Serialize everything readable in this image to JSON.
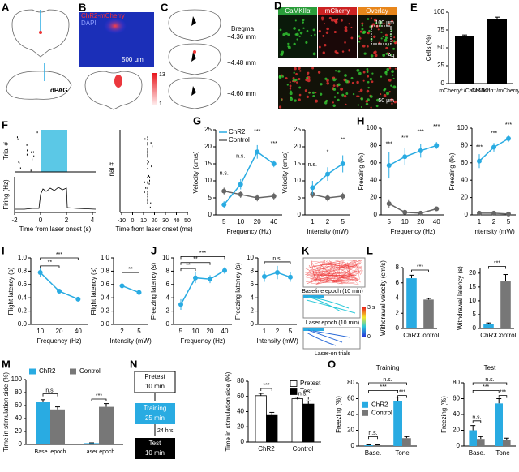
{
  "panels": {
    "letters": [
      "A",
      "B",
      "C",
      "D",
      "E",
      "F",
      "G",
      "H",
      "I",
      "J",
      "K",
      "L",
      "M",
      "N",
      "O"
    ],
    "a": {
      "region": "dPAG"
    },
    "b": {
      "channels": [
        "ChR2-mCherry",
        "DAPI"
      ],
      "scale": "500 μm",
      "colorbar": [
        "13",
        "1"
      ]
    },
    "c": {
      "reference": "Bregma",
      "levels": [
        "−4.36 mm",
        "−4.48 mm",
        "−4.60 mm"
      ]
    },
    "d": {
      "channels": [
        "CaMKIIα",
        "mCherry",
        "Overlay"
      ],
      "scale_top": "100 μm",
      "region": "Aq",
      "scale_bottom": "50 μm"
    },
    "f": {
      "raster_ylabel": "Trial #",
      "firing_ylabel": "Firing (Hz)",
      "xlabel_s": "Time from laser onset (s)",
      "xticks_s": [
        "-2",
        "0",
        "2",
        "4"
      ],
      "xlabel_ms": "Time from laser onset (ms)",
      "xticks_ms": [
        "-10",
        "0",
        "10",
        "20",
        "30",
        "40",
        "50"
      ]
    },
    "k": {
      "epochs": [
        "Baseline epoch (10 min)",
        "Laser epoch (10 min)",
        "Laser-on trials"
      ],
      "colorbar": [
        "3 s",
        "0"
      ]
    },
    "n": {
      "steps": [
        {
          "name": "Pretest",
          "duration": "10 min"
        },
        {
          "name": "Training",
          "duration": "25 min"
        },
        {
          "name": "Test",
          "duration": "10 min"
        }
      ],
      "interval": "24 hrs"
    }
  },
  "chart_data": [
    {
      "type": "bar",
      "ylabel": "Cells (%)",
      "categories": [
        "mCherry⁺/CaMKIIα⁺",
        "CaMKIIα⁺/mCherry⁺"
      ],
      "values": [
        66,
        90
      ],
      "errors": [
        2,
        3
      ],
      "color": "#000000",
      "ylim": [
        0,
        100
      ],
      "yticks": [
        0,
        25,
        50,
        75,
        100
      ]
    },
    {
      "type": "line",
      "xlabel": "Frequency (Hz)",
      "ylabel": "Velocity (cm/s)",
      "categories": [
        "5",
        "10",
        "20",
        "40"
      ],
      "series": [
        {
          "name": "ChR2",
          "color": "#29abe2",
          "values": [
            3,
            9,
            18.5,
            15
          ],
          "errors": [
            1,
            1.5,
            2,
            1
          ]
        },
        {
          "name": "Control",
          "color": "#666666",
          "values": [
            7,
            6,
            5,
            5.5
          ],
          "errors": [
            1,
            1,
            1,
            1
          ]
        }
      ],
      "ylim": [
        0,
        25
      ],
      "yticks": [
        0,
        5,
        10,
        15,
        20,
        25
      ],
      "legend": "upper left",
      "annotations": [
        "n.s.",
        "n.s.",
        "***",
        "***"
      ]
    },
    {
      "type": "line",
      "xlabel": "Intensity (mW)",
      "ylabel": "Velocity (cm/s)",
      "categories": [
        "1",
        "2",
        "5"
      ],
      "series": [
        {
          "color": "#29abe2",
          "values": [
            8,
            12,
            15
          ],
          "errors": [
            2,
            2,
            2.5
          ]
        },
        {
          "color": "#666666",
          "values": [
            6,
            5,
            5.5
          ],
          "errors": [
            1,
            1,
            1
          ]
        }
      ],
      "ylim": [
        0,
        25
      ],
      "yticks": [
        0,
        5,
        10,
        15,
        20,
        25
      ],
      "annotations": [
        "n.s.",
        "*",
        "**"
      ]
    },
    {
      "type": "line",
      "xlabel": "Frequency (Hz)",
      "ylabel": "Freezing (%)",
      "categories": [
        "5",
        "10",
        "20",
        "40"
      ],
      "series": [
        {
          "color": "#29abe2",
          "values": [
            57,
            67,
            74,
            80
          ],
          "errors": [
            15,
            10,
            8,
            4
          ]
        },
        {
          "color": "#666666",
          "values": [
            13,
            3,
            2,
            7
          ],
          "errors": [
            5,
            2,
            1,
            2
          ]
        }
      ],
      "ylim": [
        0,
        100
      ],
      "yticks": [
        0,
        20,
        40,
        60,
        80,
        100
      ],
      "annotations": [
        "***",
        "***",
        "***",
        "***"
      ]
    },
    {
      "type": "line",
      "xlabel": "Intensity (mW)",
      "ylabel": "Freezing (%)",
      "categories": [
        "1",
        "2",
        "5"
      ],
      "series": [
        {
          "color": "#29abe2",
          "values": [
            62,
            78,
            88
          ],
          "errors": [
            8,
            5,
            4
          ]
        },
        {
          "color": "#666666",
          "values": [
            2,
            2,
            1
          ],
          "errors": [
            1,
            1,
            1
          ]
        }
      ],
      "ylim": [
        0,
        100
      ],
      "yticks": [
        0,
        20,
        40,
        60,
        80,
        100
      ],
      "annotations": [
        "***",
        "***",
        "***"
      ]
    },
    {
      "type": "line",
      "xlabel": "Frequency (Hz)",
      "ylabel": "Flight latency (s)",
      "categories": [
        "10",
        "20",
        "40"
      ],
      "values": [
        0.78,
        0.5,
        0.38
      ],
      "errors": [
        0.07,
        0.03,
        0.02
      ],
      "color": "#29abe2",
      "ylim": [
        0,
        1
      ],
      "yticks": [
        {
          "value": 0,
          "label": "0.0"
        },
        0.2,
        0.4,
        0.6,
        0.8,
        {
          "value": 1,
          "label": "1.0"
        }
      ],
      "annotations": [
        "**",
        "***"
      ]
    },
    {
      "type": "line",
      "xlabel": "Intensity (mW)",
      "ylabel": "Flight latency (s)",
      "categories": [
        "2",
        "5"
      ],
      "values": [
        0.58,
        0.48
      ],
      "errors": [
        0.04,
        0.05
      ],
      "color": "#29abe2",
      "ylim": [
        0,
        1
      ],
      "yticks": [
        {
          "value": 0,
          "label": "0.0"
        },
        0.2,
        0.4,
        0.6,
        0.8,
        {
          "value": 1,
          "label": "1.0"
        }
      ],
      "annotations": [
        "**"
      ]
    },
    {
      "type": "line",
      "xlabel": "Frequency (Hz)",
      "ylabel": "Freezing latency (s)",
      "categories": [
        "5",
        "10",
        "20",
        "40"
      ],
      "values": [
        3,
        7,
        6.8,
        8.1
      ],
      "errors": [
        0.8,
        0.8,
        0.6,
        0.5
      ],
      "color": "#29abe2",
      "ylim": [
        0,
        10
      ],
      "yticks": [
        0,
        2,
        4,
        6,
        8,
        10
      ],
      "annotations": [
        "**",
        "**",
        "***"
      ]
    },
    {
      "type": "line",
      "xlabel": "Intensity (mW)",
      "ylabel": "Freezing latency (s)",
      "categories": [
        "1",
        "2",
        "5"
      ],
      "values": [
        7.2,
        7.8,
        7.1
      ],
      "errors": [
        0.8,
        1,
        0.7
      ],
      "color": "#29abe2",
      "ylim": [
        0,
        10
      ],
      "yticks": [
        0,
        2,
        4,
        6,
        8,
        10
      ],
      "annotations": [
        "n.s."
      ]
    },
    {
      "type": "bar",
      "ylabel": "Withdrawal velocity (cm/s)",
      "categories": [
        "ChR2",
        "Control"
      ],
      "values": [
        6.6,
        3.8
      ],
      "errors": [
        0.4,
        0.15
      ],
      "colors": [
        "#29abe2",
        "#777777"
      ],
      "ylim": [
        0,
        8
      ],
      "yticks": [
        0,
        2,
        4,
        6,
        8
      ],
      "annotations": [
        "***"
      ]
    },
    {
      "type": "bar",
      "ylabel": "Withdrawal latency (s)",
      "categories": [
        "ChR2",
        "Control"
      ],
      "values": [
        1.5,
        17
      ],
      "errors": [
        0.5,
        2.5
      ],
      "colors": [
        "#29abe2",
        "#777777"
      ],
      "ylim": [
        0,
        22
      ],
      "yticks": [
        0,
        5,
        10,
        15,
        20
      ],
      "annotations": [
        "***"
      ]
    },
    {
      "type": "bar",
      "ylabel": "Time in stimulation side (%)",
      "categories": [
        "Base. epoch",
        "Laser epoch"
      ],
      "series": [
        {
          "name": "ChR2",
          "color": "#29abe2",
          "values": [
            65,
            2
          ],
          "errors": [
            4,
            0.5
          ]
        },
        {
          "name": "Control",
          "color": "#777777",
          "values": [
            54,
            58
          ],
          "errors": [
            4,
            5
          ]
        }
      ],
      "ylim": [
        0,
        100
      ],
      "yticks": [
        0,
        20,
        40,
        60,
        80,
        100
      ],
      "legend": "above",
      "annotations": [
        "n.s.",
        "***"
      ]
    },
    {
      "type": "bar",
      "ylabel": "Time in stimulation side (%)",
      "categories": [
        "ChR2",
        "Control"
      ],
      "series": [
        {
          "name": "Pretest",
          "color": "#ffffff",
          "values": [
            61,
            57
          ],
          "errors": [
            3,
            2
          ]
        },
        {
          "name": "Test",
          "color": "#000000",
          "values": [
            35,
            50
          ],
          "errors": [
            4,
            4
          ]
        }
      ],
      "edgecolor": "#000000",
      "ylim": [
        0,
        80
      ],
      "yticks": [
        0,
        20,
        40,
        60,
        80
      ],
      "legend": "upper right",
      "annotations": [
        "***",
        "n.s."
      ]
    },
    {
      "type": "bar",
      "title": "Training",
      "ylabel": "Freezing (%)",
      "categories": [
        "Base.",
        "Tone"
      ],
      "series": [
        {
          "name": "ChR2",
          "color": "#29abe2",
          "values": [
            1,
            57
          ],
          "errors": [
            0.5,
            5
          ]
        },
        {
          "name": "Control",
          "color": "#777777",
          "values": [
            1,
            10
          ],
          "errors": [
            0.5,
            2
          ]
        }
      ],
      "ylim": [
        0,
        80
      ],
      "yticks": [
        0,
        20,
        40,
        60,
        80
      ],
      "legend": "center left",
      "annotations": [
        "n.s.",
        "***",
        "***",
        "n.s."
      ]
    },
    {
      "type": "bar",
      "title": "Test",
      "ylabel": "Freezing (%)",
      "categories": [
        "Base.",
        "Tone"
      ],
      "series": [
        {
          "color": "#29abe2",
          "values": [
            20,
            54
          ],
          "errors": [
            6,
            6
          ]
        },
        {
          "color": "#777777",
          "values": [
            9,
            8
          ],
          "errors": [
            3,
            2
          ]
        }
      ],
      "ylim": [
        0,
        80
      ],
      "yticks": [
        0,
        20,
        40,
        60,
        80
      ],
      "annotations": [
        "n.s.",
        "***",
        "***",
        "n.s."
      ]
    }
  ]
}
